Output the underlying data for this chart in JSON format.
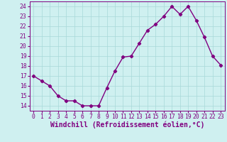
{
  "x": [
    0,
    1,
    2,
    3,
    4,
    5,
    6,
    7,
    8,
    9,
    10,
    11,
    12,
    13,
    14,
    15,
    16,
    17,
    18,
    19,
    20,
    21,
    22,
    23
  ],
  "y": [
    17.0,
    16.5,
    16.0,
    15.0,
    14.5,
    14.5,
    14.0,
    14.0,
    14.0,
    15.8,
    17.5,
    18.9,
    19.0,
    20.3,
    21.6,
    22.2,
    23.0,
    24.0,
    23.2,
    24.0,
    22.6,
    20.9,
    19.0,
    18.1
  ],
  "line_color": "#800080",
  "marker": "D",
  "marker_size": 2.2,
  "bg_color": "#cff0f0",
  "grid_color": "#a8d8d8",
  "xlabel": "Windchill (Refroidissement éolien,°C)",
  "xlim": [
    -0.5,
    23.5
  ],
  "ylim": [
    13.5,
    24.5
  ],
  "yticks": [
    14,
    15,
    16,
    17,
    18,
    19,
    20,
    21,
    22,
    23,
    24
  ],
  "xticks": [
    0,
    1,
    2,
    3,
    4,
    5,
    6,
    7,
    8,
    9,
    10,
    11,
    12,
    13,
    14,
    15,
    16,
    17,
    18,
    19,
    20,
    21,
    22,
    23
  ],
  "tick_color": "#800080",
  "tick_label_fontsize": 5.8,
  "xlabel_fontsize": 7.0,
  "line_width": 1.0
}
